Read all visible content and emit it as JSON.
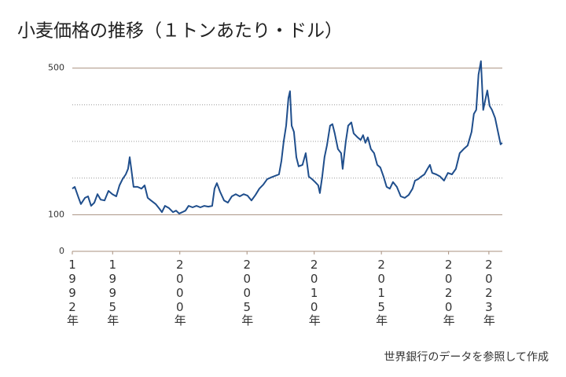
{
  "chart_data": {
    "type": "line",
    "title": "小麦価格の推移（１トンあたり・ドル）",
    "source": "世界銀行のデータを参照して作成",
    "x": [
      1992.0,
      1992.18,
      1992.47,
      1992.64,
      1992.94,
      1993.17,
      1993.4,
      1993.64,
      1993.87,
      1994.11,
      1994.4,
      1994.69,
      1994.98,
      1995.27,
      1995.51,
      1995.74,
      1995.98,
      1996.15,
      1996.27,
      1996.39,
      1996.56,
      1996.85,
      1997.15,
      1997.38,
      1997.61,
      1997.85,
      1998.2,
      1998.49,
      1998.67,
      1998.9,
      1999.19,
      1999.49,
      1999.72,
      1999.95,
      2000.19,
      2000.42,
      2000.65,
      2000.95,
      2001.24,
      2001.53,
      2001.82,
      2002.12,
      2002.41,
      2002.58,
      2002.76,
      2002.99,
      2003.29,
      2003.58,
      2003.87,
      2004.16,
      2004.46,
      2004.75,
      2005.04,
      2005.33,
      2005.63,
      2005.92,
      2006.21,
      2006.5,
      2006.8,
      2007.09,
      2007.38,
      2007.56,
      2007.73,
      2007.91,
      2008.08,
      2008.2,
      2008.32,
      2008.49,
      2008.67,
      2008.84,
      2009.13,
      2009.37,
      2009.6,
      2009.84,
      2010.07,
      2010.3,
      2010.42,
      2010.6,
      2010.77,
      2010.95,
      2011.18,
      2011.36,
      2011.53,
      2011.77,
      2012.0,
      2012.12,
      2012.35,
      2012.53,
      2012.76,
      2012.94,
      2013.23,
      2013.46,
      2013.64,
      2013.81,
      2013.99,
      2014.22,
      2014.46,
      2014.69,
      2014.92,
      2015.16,
      2015.39,
      2015.63,
      2015.86,
      2016.15,
      2016.44,
      2016.74,
      2017.03,
      2017.32,
      2017.5,
      2017.73,
      2017.96,
      2018.2,
      2018.43,
      2018.61,
      2018.78,
      2019.08,
      2019.37,
      2019.66,
      2019.95,
      2020.25,
      2020.54,
      2020.83,
      2021.12,
      2021.42,
      2021.71,
      2021.88,
      2022.06,
      2022.23,
      2022.41,
      2022.58,
      2022.76,
      2022.88,
      2023.05,
      2023.23,
      2023.46,
      2023.7,
      2023.87,
      2023.99
    ],
    "series": [
      {
        "color": "#1f4e8c",
        "values": [
          171,
          176,
          146,
          129,
          146,
          150,
          124,
          133,
          156,
          141,
          139,
          165,
          156,
          150,
          180,
          197,
          210,
          225,
          257,
          225,
          176,
          176,
          171,
          180,
          146,
          139,
          129,
          116,
          107,
          124,
          118,
          107,
          111,
          103,
          107,
          111,
          124,
          120,
          124,
          120,
          124,
          122,
          124,
          171,
          186,
          163,
          139,
          133,
          150,
          156,
          150,
          156,
          152,
          139,
          154,
          171,
          182,
          197,
          202,
          206,
          210,
          247,
          300,
          343,
          418,
          437,
          343,
          326,
          257,
          232,
          236,
          268,
          204,
          197,
          189,
          180,
          159,
          204,
          257,
          289,
          343,
          347,
          322,
          279,
          268,
          225,
          300,
          343,
          352,
          322,
          311,
          304,
          317,
          296,
          311,
          279,
          268,
          236,
          229,
          204,
          176,
          171,
          189,
          176,
          150,
          146,
          154,
          171,
          193,
          197,
          204,
          210,
          225,
          236,
          214,
          210,
          204,
          193,
          214,
          210,
          225,
          268,
          279,
          289,
          326,
          375,
          386,
          482,
          519,
          386,
          418,
          439,
          397,
          386,
          364,
          322,
          292,
          296
        ]
      }
    ],
    "xlim": [
      1992,
      2024
    ],
    "xticks": [
      {
        "value": 1992,
        "label": "1992年"
      },
      {
        "value": 1995,
        "label": "1995年"
      },
      {
        "value": 2000,
        "label": "2000年"
      },
      {
        "value": 2005,
        "label": "2005年"
      },
      {
        "value": 2010,
        "label": "2010年"
      },
      {
        "value": 2015,
        "label": "2015年"
      },
      {
        "value": 2020,
        "label": "2020年"
      },
      {
        "value": 2023,
        "label": "2023年"
      }
    ],
    "ylim": [
      0,
      520
    ],
    "yticks": [
      0,
      100,
      500
    ],
    "minor_grid": [
      200,
      300,
      400
    ],
    "grid": true
  }
}
